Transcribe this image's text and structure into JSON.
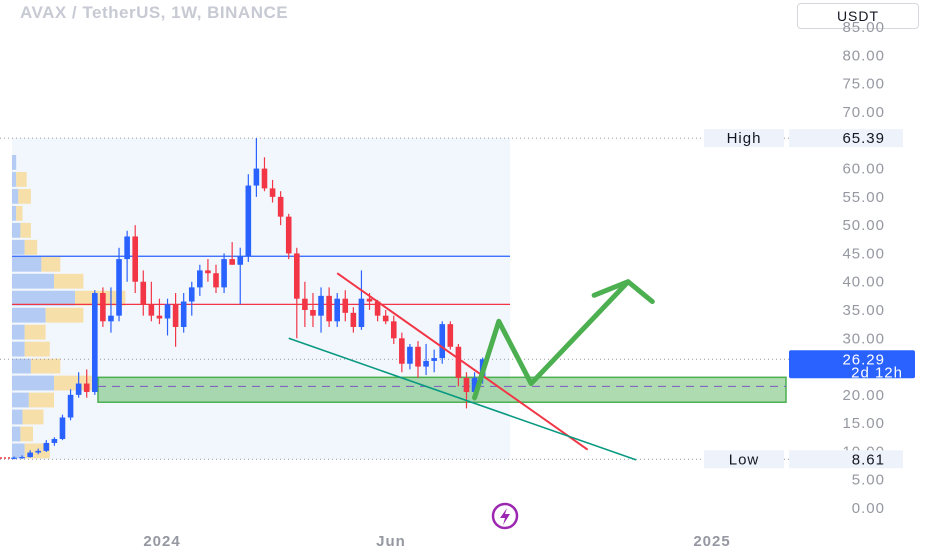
{
  "header": {
    "title": "AVAX / TetherUS, 1W, BINANCE",
    "currency": "USDT"
  },
  "chart_data": {
    "type": "candlestick",
    "symbol": "AVAX / TetherUS",
    "interval": "1W",
    "exchange": "BINANCE",
    "y_axis": {
      "ticks": [
        "0.00",
        "5.00",
        "10.00",
        "15.00",
        "20.00",
        "25.00",
        "30.00",
        "35.00",
        "40.00",
        "45.00",
        "50.00",
        "55.00",
        "60.00",
        "65.00",
        "70.00",
        "75.00",
        "80.00",
        "85.00"
      ],
      "range": [
        0,
        85
      ]
    },
    "x_axis": {
      "labels": [
        "2024",
        "Jun",
        "2025"
      ]
    },
    "high": {
      "label": "High",
      "value": "65.39"
    },
    "low": {
      "label": "Low",
      "value": "8.61"
    },
    "last_price": {
      "value": "26.29",
      "countdown": "2d 12h"
    },
    "colors": {
      "up": "#2962ff",
      "down": "#f23645",
      "accent": "#2962ff"
    },
    "candles": [
      [
        8.7,
        9.1,
        8.6,
        8.9
      ],
      [
        8.9,
        9.3,
        8.7,
        9.0
      ],
      [
        9.0,
        10.2,
        8.9,
        9.8
      ],
      [
        9.8,
        10.5,
        9.5,
        10.1
      ],
      [
        10.1,
        12.0,
        9.9,
        11.5
      ],
      [
        11.5,
        12.5,
        11.0,
        12.2
      ],
      [
        12.2,
        16.5,
        12.0,
        16.0
      ],
      [
        16.0,
        21.0,
        15.5,
        20.0
      ],
      [
        20.0,
        24.0,
        19.5,
        22.0
      ],
      [
        22.0,
        24.5,
        19.5,
        20.5
      ],
      [
        20.5,
        38.5,
        20.0,
        38.0
      ],
      [
        38.0,
        39.0,
        32.0,
        33.0
      ],
      [
        33.0,
        39.0,
        31.0,
        34.0
      ],
      [
        34.0,
        46.0,
        33.0,
        44.0
      ],
      [
        44.0,
        49.0,
        40.0,
        48.0
      ],
      [
        48.0,
        50.0,
        38.0,
        40.0
      ],
      [
        40.0,
        42.0,
        34.0,
        36.0
      ],
      [
        36.0,
        40.0,
        33.0,
        34.0
      ],
      [
        34.0,
        37.0,
        32.5,
        33.5
      ],
      [
        33.5,
        37.0,
        30.5,
        36.0
      ],
      [
        36.0,
        38.0,
        28.5,
        32.0
      ],
      [
        32.0,
        38.0,
        31.0,
        36.5
      ],
      [
        36.5,
        40.0,
        34.0,
        39.0
      ],
      [
        39.0,
        43.0,
        37.5,
        42.0
      ],
      [
        42.0,
        44.0,
        40.0,
        41.5
      ],
      [
        41.5,
        43.0,
        38.0,
        39.0
      ],
      [
        39.0,
        45.0,
        38.0,
        44.0
      ],
      [
        44.0,
        47.0,
        43.0,
        43.0
      ],
      [
        43.0,
        46.0,
        36.0,
        44.5
      ],
      [
        44.5,
        59.0,
        43.5,
        57.0
      ],
      [
        57.0,
        65.39,
        55.0,
        60.0
      ],
      [
        60.0,
        62.0,
        56.0,
        56.5
      ],
      [
        56.5,
        58.0,
        54.0,
        55.0
      ],
      [
        55.0,
        56.0,
        50.0,
        51.5
      ],
      [
        51.5,
        52.0,
        44.0,
        45.0
      ],
      [
        45.0,
        46.0,
        30.0,
        37.0
      ],
      [
        37.0,
        40.0,
        32.0,
        35.0
      ],
      [
        35.0,
        38.0,
        32.0,
        34.0
      ],
      [
        34.0,
        39.0,
        31.0,
        37.5
      ],
      [
        37.5,
        39.0,
        32.0,
        33.0
      ],
      [
        33.0,
        38.0,
        32.0,
        37.0
      ],
      [
        37.0,
        38.5,
        33.0,
        34.5
      ],
      [
        34.5,
        35.5,
        31.0,
        32.0
      ],
      [
        32.0,
        42.0,
        31.5,
        37.0
      ],
      [
        37.0,
        38.0,
        35.0,
        36.5
      ],
      [
        36.5,
        36.8,
        33.0,
        34.0
      ],
      [
        34.0,
        35.0,
        32.5,
        33.0
      ],
      [
        33.0,
        34.0,
        29.0,
        30.0
      ],
      [
        30.0,
        31.0,
        24.0,
        25.5
      ],
      [
        25.5,
        29.0,
        24.5,
        28.5
      ],
      [
        28.5,
        29.5,
        23.0,
        25.0
      ],
      [
        25.0,
        29.0,
        23.5,
        26.0
      ],
      [
        26.0,
        28.0,
        24.0,
        26.5
      ],
      [
        26.5,
        33.0,
        25.5,
        32.5
      ],
      [
        32.5,
        33.0,
        28.0,
        28.5
      ],
      [
        28.5,
        29.0,
        21.5,
        23.0
      ],
      [
        23.0,
        24.0,
        17.6,
        20.5
      ],
      [
        20.5,
        24.0,
        19.0,
        23.0
      ],
      [
        23.0,
        26.6,
        22.0,
        26.29
      ]
    ],
    "volume_profile": [
      [
        61,
        2,
        0
      ],
      [
        58,
        2,
        5
      ],
      [
        55,
        3,
        6
      ],
      [
        52,
        2,
        3
      ],
      [
        49,
        4,
        5
      ],
      [
        46,
        6,
        6
      ],
      [
        43,
        14,
        9
      ],
      [
        40,
        20,
        14
      ],
      [
        37,
        30,
        24
      ],
      [
        34,
        16,
        18
      ],
      [
        31,
        6,
        10
      ],
      [
        28,
        6,
        12
      ],
      [
        25,
        9,
        14
      ],
      [
        22,
        20,
        18
      ],
      [
        19,
        8,
        12
      ],
      [
        16,
        5,
        10
      ],
      [
        13,
        4,
        6
      ],
      [
        10,
        6,
        12
      ]
    ],
    "annotations": [
      {
        "kind": "horizontal-line",
        "color": "#2962ff",
        "value": 44.5
      },
      {
        "kind": "horizontal-line",
        "color": "#f23645",
        "value": 36.0
      },
      {
        "kind": "zone",
        "color": "#4caf50",
        "from": 18.7,
        "to": 23.1
      },
      {
        "kind": "dashed-line",
        "color": "#7e57c2",
        "value": 21.5
      },
      {
        "kind": "trendline",
        "color": "#f23645",
        "from": [
          40,
          41.5
        ],
        "to": [
          71,
          10.3
        ]
      },
      {
        "kind": "trendline",
        "color": "#089981",
        "from": [
          34,
          30.0
        ],
        "to": [
          77,
          8.5
        ]
      },
      {
        "kind": "arrow-path",
        "color": "#4caf50",
        "points": [
          [
            57,
            19.5
          ],
          [
            60,
            33
          ],
          [
            64,
            22
          ],
          [
            76,
            40
          ],
          [
            79,
            36.5
          ]
        ]
      }
    ]
  }
}
